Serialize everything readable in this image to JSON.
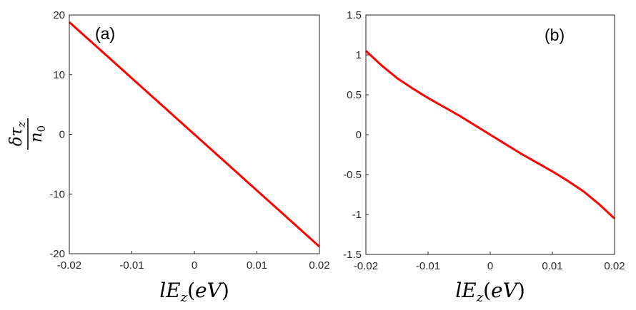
{
  "colors": {
    "series": "#ff0000",
    "axes": "#262626",
    "background": "#ffffff"
  },
  "ylabel": {
    "numerator": "δτ",
    "numerator_sub": "z",
    "denominator": "n",
    "denominator_sub": "0"
  },
  "chart_data": [
    {
      "type": "line",
      "panel_label": "(a)",
      "xlabel": {
        "pre": "lE",
        "sub": "z",
        "open": "(",
        "unit": "eV",
        "close": ")"
      },
      "xlim": [
        -0.02,
        0.02
      ],
      "ylim": [
        -20,
        20
      ],
      "xticks": [
        -0.02,
        -0.01,
        0,
        0.01,
        0.02
      ],
      "xtick_labels": [
        "-0.02",
        "-0.01",
        "0",
        "0.01",
        "0.02"
      ],
      "yticks": [
        -20,
        -10,
        0,
        10,
        20
      ],
      "ytick_labels": [
        "-20",
        "-10",
        "0",
        "10",
        "20"
      ],
      "grid": false,
      "series": [
        {
          "color": "#ff0000",
          "x": [
            -0.02,
            -0.015,
            -0.01,
            -0.005,
            0,
            0.005,
            0.01,
            0.015,
            0.02
          ],
          "y": [
            18.8,
            14.1,
            9.4,
            4.7,
            0,
            -4.7,
            -9.4,
            -14.1,
            -18.8
          ]
        }
      ]
    },
    {
      "type": "line",
      "panel_label": "(b)",
      "xlabel": {
        "pre": "lE",
        "sub": "z",
        "open": "(",
        "unit": "eV",
        "close": ")"
      },
      "xlim": [
        -0.02,
        0.02
      ],
      "ylim": [
        -1.5,
        1.5
      ],
      "xticks": [
        -0.02,
        -0.01,
        0,
        0.01,
        0.02
      ],
      "xtick_labels": [
        "-0.02",
        "-0.01",
        "0",
        "0.01",
        "0.02"
      ],
      "yticks": [
        -1.5,
        -1,
        -0.5,
        0,
        0.5,
        1,
        1.5
      ],
      "ytick_labels": [
        "-1.5",
        "-1",
        "-0.5",
        "0",
        "0.5",
        "1",
        "1.5"
      ],
      "grid": false,
      "series": [
        {
          "color": "#ff0000",
          "x": [
            -0.02,
            -0.0175,
            -0.015,
            -0.0125,
            -0.01,
            -0.0075,
            -0.005,
            -0.0025,
            0,
            0.0025,
            0.005,
            0.0075,
            0.01,
            0.0125,
            0.015,
            0.0175,
            0.02
          ],
          "y": [
            1.05,
            0.87,
            0.71,
            0.58,
            0.46,
            0.35,
            0.24,
            0.12,
            0,
            -0.12,
            -0.24,
            -0.35,
            -0.46,
            -0.58,
            -0.71,
            -0.87,
            -1.05
          ]
        }
      ]
    }
  ]
}
